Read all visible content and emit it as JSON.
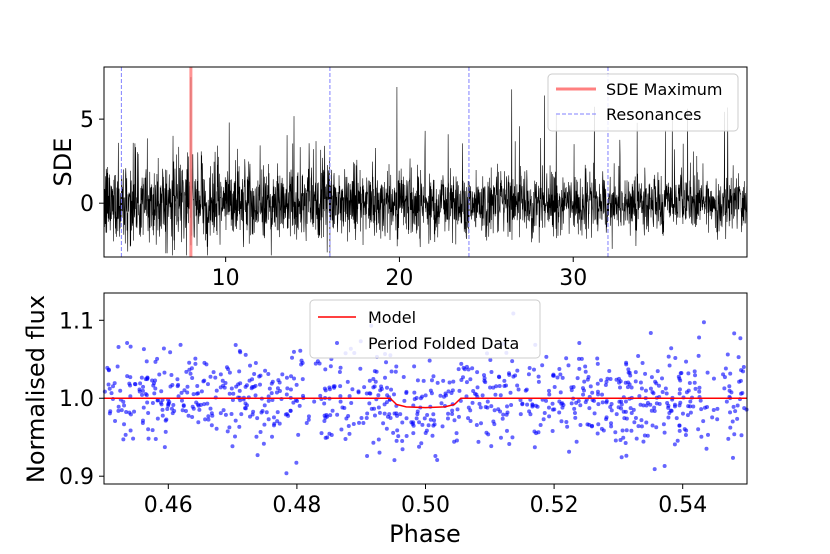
{
  "chart_data": [
    {
      "type": "line",
      "panel": "periodogram",
      "title": "",
      "xlabel": "",
      "ylabel": "SDE",
      "xlim": [
        3.0,
        40.0
      ],
      "ylim": [
        -3.2,
        8.1
      ],
      "xticks": [
        10,
        20,
        30
      ],
      "yticks": [
        0,
        5
      ],
      "series": [
        {
          "name": "",
          "color": "#000000",
          "description_values": "dense noise around 0, spread roughly -3 to +3 with spikes to ~6.5"
        },
        {
          "name": "SDE Maximum",
          "color": "#ff8080",
          "x": 8.0
        }
      ],
      "resonances": {
        "name": "Resonances",
        "color": "#8080ff",
        "x": [
          4.0,
          16.0,
          24.0,
          32.0
        ]
      },
      "peak": {
        "x": 8.0,
        "y": 7.5
      },
      "legend": {
        "position": "top-right",
        "entries": [
          "SDE Maximum",
          "Resonances"
        ]
      }
    },
    {
      "type": "scatter",
      "panel": "folded",
      "title": "",
      "xlabel": "Phase",
      "ylabel": "Normalised flux",
      "xlim": [
        0.45,
        0.55
      ],
      "ylim": [
        0.89,
        1.135
      ],
      "xticks": [
        0.46,
        0.48,
        0.5,
        0.52,
        0.54
      ],
      "yticks": [
        0.9,
        1.0,
        1.1
      ],
      "series": [
        {
          "name": "Model",
          "color": "#ff0000",
          "x": [
            0.45,
            0.4945,
            0.4955,
            0.497,
            0.5,
            0.503,
            0.5045,
            0.5055,
            0.55
          ],
          "y": [
            1.0,
            1.0,
            0.992,
            0.989,
            0.988,
            0.989,
            0.992,
            1.0,
            1.0
          ]
        },
        {
          "name": "Period Folded Data",
          "color": "#0000ff",
          "description_values": "~900 points scattered around 1.0 with sigma ~0.03"
        }
      ],
      "legend": {
        "position": "top-center",
        "entries": [
          "Model",
          "Period Folded Data"
        ]
      }
    }
  ]
}
